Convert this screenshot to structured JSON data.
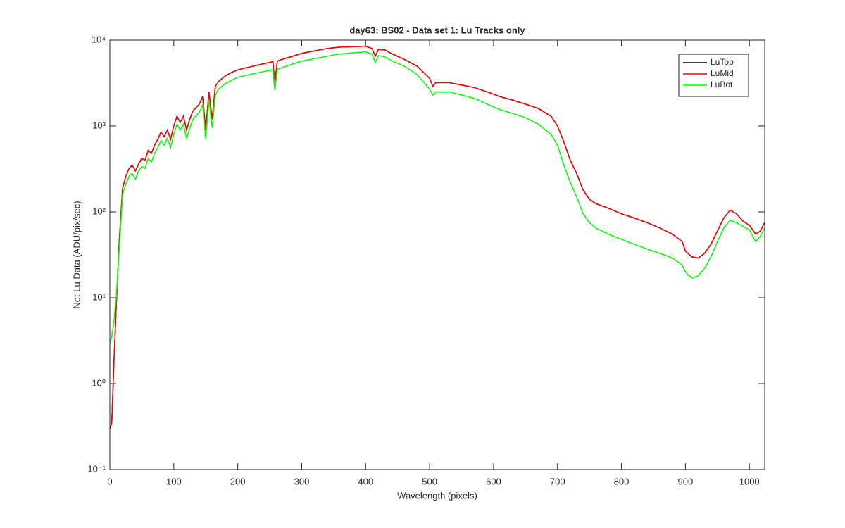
{
  "chart_data": {
    "type": "line",
    "title": "day63: BS02 - Data set 1: Lu Tracks only",
    "xlabel": "Wavelength (pixels)",
    "ylabel": "Net Lu Data (ADU/pix/sec)",
    "yscale": "log",
    "legend": "northeast",
    "xlim": [
      0,
      1024
    ],
    "ylim": [
      0.1,
      10000
    ],
    "xticks": [
      0,
      100,
      200,
      300,
      400,
      500,
      600,
      700,
      800,
      900,
      1000
    ],
    "yticks": [
      {
        "value": 0.1,
        "label": "10⁻¹"
      },
      {
        "value": 1,
        "label": "10⁰"
      },
      {
        "value": 10,
        "label": "10¹"
      },
      {
        "value": 100,
        "label": "10²"
      },
      {
        "value": 1000,
        "label": "10³"
      },
      {
        "value": 10000,
        "label": "10⁴"
      }
    ],
    "x": [
      0,
      3,
      6,
      10,
      15,
      20,
      25,
      30,
      35,
      40,
      45,
      50,
      55,
      60,
      65,
      70,
      75,
      80,
      85,
      90,
      95,
      100,
      105,
      110,
      115,
      120,
      125,
      130,
      140,
      145,
      150,
      155,
      160,
      165,
      170,
      180,
      190,
      200,
      220,
      240,
      255,
      258,
      262,
      270,
      280,
      300,
      320,
      340,
      360,
      380,
      400,
      410,
      415,
      420,
      430,
      440,
      460,
      480,
      500,
      505,
      510,
      530,
      550,
      570,
      590,
      610,
      630,
      650,
      670,
      690,
      700,
      710,
      720,
      730,
      740,
      750,
      760,
      780,
      800,
      820,
      840,
      860,
      880,
      895,
      900,
      910,
      920,
      930,
      940,
      950,
      960,
      970,
      980,
      990,
      1000,
      1010,
      1017,
      1024
    ],
    "series": [
      {
        "name": "LuTop",
        "color": "#000000",
        "values": [
          0.3,
          0.35,
          1.5,
          8,
          50,
          190,
          260,
          320,
          350,
          300,
          360,
          420,
          400,
          520,
          480,
          600,
          700,
          850,
          750,
          900,
          700,
          1000,
          1300,
          1100,
          1300,
          900,
          1200,
          1500,
          1800,
          2200,
          900,
          2500,
          1200,
          2900,
          3300,
          3800,
          4200,
          4500,
          4900,
          5300,
          5600,
          3200,
          5700,
          6000,
          6300,
          7000,
          7500,
          8000,
          8300,
          8400,
          8500,
          8000,
          6500,
          7800,
          7700,
          7000,
          6000,
          5000,
          3600,
          2900,
          3200,
          3200,
          3000,
          2800,
          2500,
          2200,
          2000,
          1800,
          1600,
          1300,
          1000,
          650,
          400,
          280,
          180,
          140,
          125,
          110,
          95,
          85,
          75,
          65,
          55,
          45,
          35,
          30,
          29,
          33,
          42,
          60,
          85,
          105,
          95,
          78,
          70,
          55,
          60,
          75
        ]
      },
      {
        "name": "LuMid",
        "color": "#ff0000",
        "values": [
          0.3,
          0.35,
          1.5,
          8,
          50,
          190,
          260,
          320,
          350,
          300,
          360,
          420,
          400,
          520,
          480,
          600,
          700,
          850,
          750,
          900,
          700,
          1000,
          1300,
          1100,
          1300,
          900,
          1200,
          1500,
          1800,
          2200,
          900,
          2500,
          1200,
          2900,
          3300,
          3800,
          4200,
          4500,
          4900,
          5300,
          5600,
          3200,
          5700,
          6000,
          6300,
          7000,
          7500,
          8000,
          8300,
          8400,
          8500,
          8000,
          6500,
          7800,
          7700,
          7000,
          6000,
          5000,
          3600,
          2900,
          3200,
          3200,
          3000,
          2800,
          2500,
          2200,
          2000,
          1800,
          1600,
          1300,
          1000,
          650,
          400,
          280,
          180,
          140,
          125,
          110,
          95,
          85,
          75,
          65,
          55,
          45,
          35,
          30,
          29,
          33,
          42,
          60,
          85,
          105,
          95,
          78,
          70,
          55,
          60,
          75
        ]
      },
      {
        "name": "LuBot",
        "color": "#00ff00",
        "values": [
          3,
          3.5,
          5,
          10,
          40,
          160,
          210,
          260,
          280,
          240,
          300,
          340,
          320,
          420,
          380,
          480,
          560,
          680,
          600,
          720,
          560,
          800,
          1050,
          900,
          1050,
          720,
          950,
          1200,
          1450,
          1750,
          700,
          2000,
          950,
          2300,
          2700,
          3100,
          3400,
          3700,
          4000,
          4300,
          4500,
          2600,
          4600,
          4800,
          5100,
          5700,
          6100,
          6500,
          6900,
          7100,
          7300,
          6900,
          5500,
          6600,
          6400,
          5800,
          5000,
          4000,
          2700,
          2300,
          2500,
          2500,
          2300,
          2100,
          1800,
          1550,
          1400,
          1250,
          1050,
          800,
          600,
          350,
          220,
          150,
          95,
          75,
          65,
          55,
          48,
          42,
          37,
          33,
          29,
          24,
          20,
          17,
          18,
          22,
          30,
          45,
          65,
          80,
          75,
          68,
          62,
          45,
          52,
          65
        ]
      }
    ]
  }
}
